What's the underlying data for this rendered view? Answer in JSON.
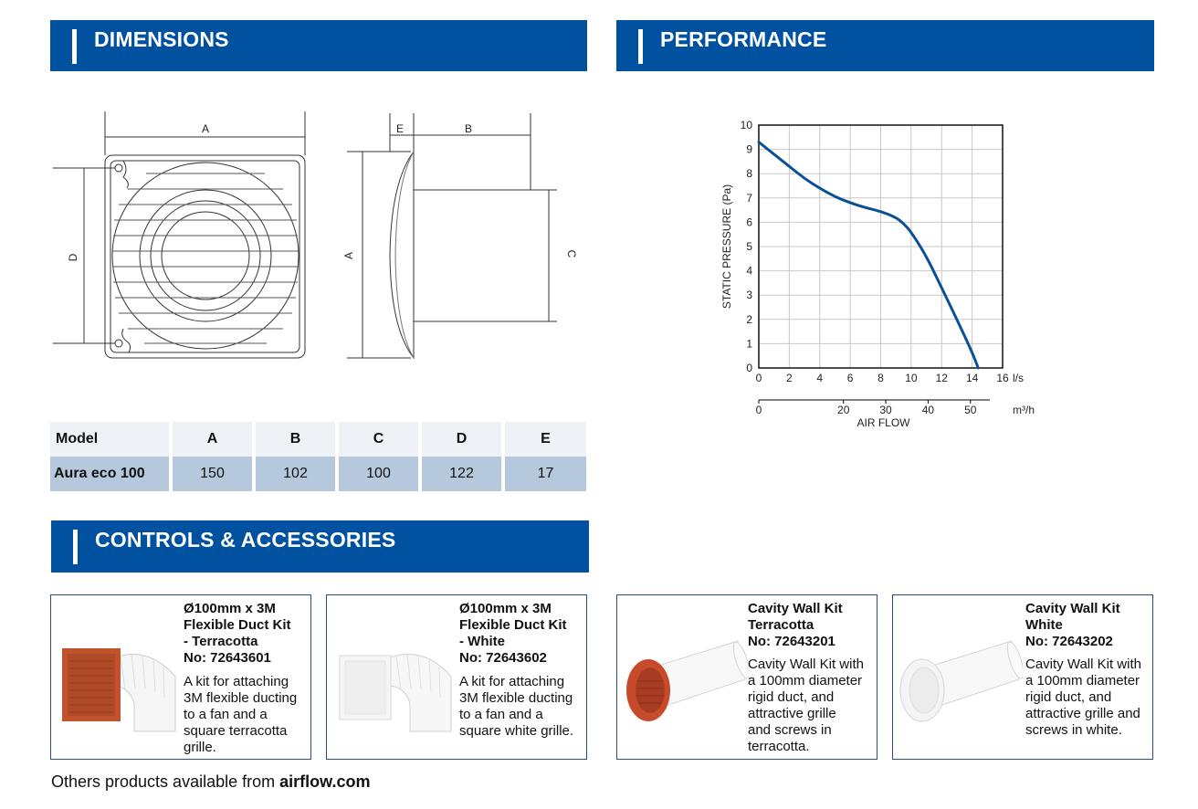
{
  "sections": {
    "dimensions": "DIMENSIONS",
    "performance": "PERFORMANCE",
    "controls": "CONTROLS & ACCESSORIES"
  },
  "drawing_labels": {
    "front_width": "A",
    "front_height": "D",
    "side_e": "E",
    "side_b": "B",
    "side_a": "A",
    "side_c": "C"
  },
  "table": {
    "headers": [
      "Model",
      "A",
      "B",
      "C",
      "D",
      "E"
    ],
    "rows": [
      [
        "Aura eco 100",
        "150",
        "102",
        "100",
        "122",
        "17"
      ]
    ]
  },
  "chart_data": {
    "type": "line",
    "title": "",
    "xlabel": "AIR FLOW",
    "ylabel": "STATIC PRESSURE (Pa)",
    "x_unit": "l/s",
    "x2_unit": "m³/h",
    "xlim": [
      0,
      16
    ],
    "ylim": [
      0,
      10
    ],
    "xticks": [
      "0",
      "2",
      "4",
      "6",
      "8",
      "10",
      "12",
      "14",
      "16"
    ],
    "yticks": [
      "0",
      "1",
      "2",
      "3",
      "4",
      "5",
      "6",
      "7",
      "8",
      "9",
      "10"
    ],
    "x2ticks": [
      "0",
      "20",
      "30",
      "40",
      "50"
    ],
    "grid": true,
    "color": "#0a5096",
    "series": [
      {
        "x": [
          0,
          1,
          2,
          3,
          4,
          5,
          6,
          7,
          8,
          9,
          9.5,
          10,
          11,
          12,
          13,
          14,
          14.4
        ],
        "values": [
          9.3,
          8.8,
          8.3,
          7.8,
          7.4,
          7.05,
          6.8,
          6.6,
          6.45,
          6.2,
          5.95,
          5.6,
          4.6,
          3.3,
          2.0,
          0.65,
          0
        ]
      }
    ]
  },
  "accessories": [
    {
      "title_lines": [
        "Ø100mm x 3M",
        "Flexible Duct Kit",
        "- Terracotta",
        "No: 72643601"
      ],
      "desc_lines": [
        "A kit for attaching",
        "3M flexible ducting",
        "to a fan and a",
        "square terracotta",
        "grille."
      ],
      "image": "terracotta-duct-kit",
      "color": "#c0522c"
    },
    {
      "title_lines": [
        "Ø100mm x 3M",
        "Flexible Duct Kit",
        "- White",
        "No: 72643602"
      ],
      "desc_lines": [
        "A kit for attaching",
        "3M flexible ducting",
        "to a fan and a",
        "square white grille."
      ],
      "image": "white-duct-kit",
      "color": "#f2f2f2"
    },
    {
      "title_lines": [
        "Cavity Wall Kit",
        "Terracotta",
        "No: 72643201"
      ],
      "desc_lines": [
        "Cavity Wall Kit with",
        "a 100mm diameter",
        "rigid duct, and",
        "attractive grille",
        "and screws in",
        "terracotta."
      ],
      "image": "terracotta-cavity-kit",
      "color": "#c74a2a"
    },
    {
      "title_lines": [
        "Cavity Wall Kit",
        "White",
        "No: 72643202"
      ],
      "desc_lines": [
        "Cavity Wall Kit with",
        "a 100mm diameter",
        "rigid duct, and",
        "attractive grille and",
        "screws in white."
      ],
      "image": "white-cavity-kit",
      "color": "#f4f4f4"
    }
  ],
  "footer": {
    "text": "Others products available from ",
    "link": "airflow.com"
  },
  "colors": {
    "brand_blue": "#0052a0",
    "table_header": "#eef2f7",
    "table_row": "#b6c8dc"
  }
}
